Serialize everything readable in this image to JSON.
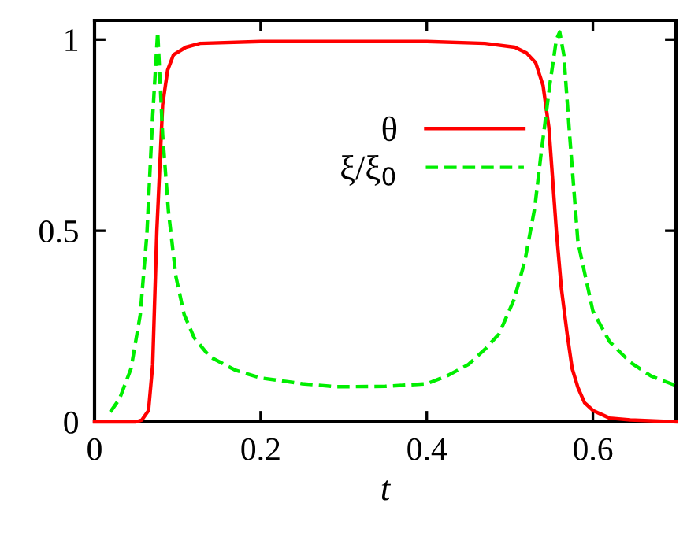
{
  "chart_data": {
    "type": "line",
    "xlabel": "t",
    "xlim": [
      0,
      0.7
    ],
    "ylim": [
      0,
      1.05
    ],
    "xticks": [
      0,
      0.2,
      0.4,
      0.6
    ],
    "yticks": [
      0,
      0.5,
      1
    ],
    "grid": false,
    "legend": "top",
    "marker": "none",
    "series": [
      {
        "name": "θ",
        "color": "#ff0000",
        "line_style": "solid",
        "x": [
          0.0,
          0.03,
          0.05,
          0.057,
          0.065,
          0.07,
          0.075,
          0.082,
          0.088,
          0.095,
          0.11,
          0.127,
          0.2,
          0.3,
          0.4,
          0.47,
          0.506,
          0.52,
          0.531,
          0.54,
          0.547,
          0.556,
          0.562,
          0.569,
          0.575,
          0.582,
          0.59,
          0.6,
          0.62,
          0.645,
          0.7
        ],
        "values": [
          0.0,
          0.0,
          0.0,
          0.005,
          0.03,
          0.15,
          0.5,
          0.83,
          0.92,
          0.96,
          0.98,
          0.99,
          0.995,
          0.995,
          0.995,
          0.99,
          0.98,
          0.965,
          0.94,
          0.88,
          0.77,
          0.5,
          0.35,
          0.23,
          0.14,
          0.09,
          0.05,
          0.03,
          0.01,
          0.005,
          0.0
        ]
      },
      {
        "name": "ξ/ξ$_{0}$",
        "color": "#00ee00",
        "line_style": "dashed",
        "x": [
          0.019,
          0.03,
          0.044,
          0.055,
          0.063,
          0.07,
          0.076,
          0.082,
          0.089,
          0.098,
          0.108,
          0.12,
          0.139,
          0.17,
          0.2,
          0.25,
          0.29,
          0.35,
          0.4,
          0.424,
          0.45,
          0.47,
          0.487,
          0.505,
          0.518,
          0.53,
          0.537,
          0.548,
          0.556,
          0.56,
          0.565,
          0.572,
          0.582,
          0.6,
          0.62,
          0.645,
          0.67,
          0.7
        ],
        "values": [
          0.026,
          0.06,
          0.14,
          0.28,
          0.49,
          0.8,
          1.02,
          0.75,
          0.55,
          0.38,
          0.28,
          0.22,
          0.17,
          0.135,
          0.115,
          0.1,
          0.092,
          0.093,
          0.1,
          0.12,
          0.15,
          0.19,
          0.23,
          0.32,
          0.42,
          0.56,
          0.69,
          0.88,
          1.0,
          1.02,
          0.96,
          0.75,
          0.47,
          0.29,
          0.21,
          0.156,
          0.12,
          0.095
        ]
      }
    ]
  }
}
